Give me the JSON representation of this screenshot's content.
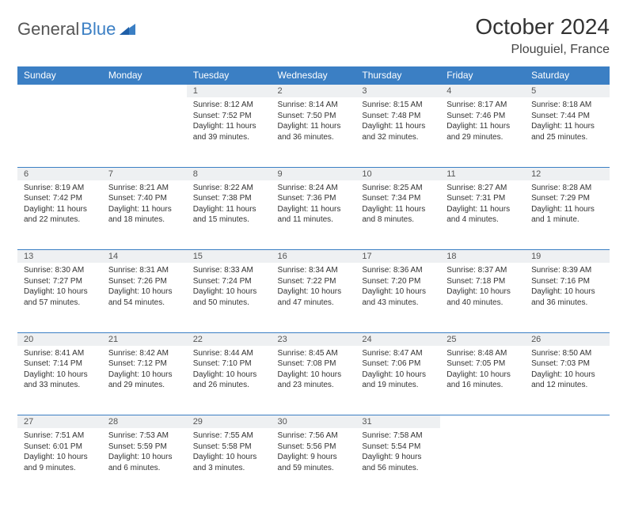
{
  "brand": {
    "word1": "General",
    "word2": "Blue"
  },
  "title": "October 2024",
  "location": "Plouguiel, France",
  "colors": {
    "header_bg": "#3b7fc4",
    "header_text": "#ffffff",
    "daynum_bg": "#eef0f2",
    "border": "#3b7fc4",
    "text": "#333333",
    "logo_gray": "#555555",
    "logo_blue": "#3b7fc4"
  },
  "typography": {
    "title_fontsize": 28,
    "location_fontsize": 16,
    "header_fontsize": 12,
    "cell_fontsize": 10
  },
  "day_names": [
    "Sunday",
    "Monday",
    "Tuesday",
    "Wednesday",
    "Thursday",
    "Friday",
    "Saturday"
  ],
  "weeks": [
    [
      null,
      null,
      {
        "n": "1",
        "sunrise": "8:12 AM",
        "sunset": "7:52 PM",
        "daylight": "11 hours and 39 minutes."
      },
      {
        "n": "2",
        "sunrise": "8:14 AM",
        "sunset": "7:50 PM",
        "daylight": "11 hours and 36 minutes."
      },
      {
        "n": "3",
        "sunrise": "8:15 AM",
        "sunset": "7:48 PM",
        "daylight": "11 hours and 32 minutes."
      },
      {
        "n": "4",
        "sunrise": "8:17 AM",
        "sunset": "7:46 PM",
        "daylight": "11 hours and 29 minutes."
      },
      {
        "n": "5",
        "sunrise": "8:18 AM",
        "sunset": "7:44 PM",
        "daylight": "11 hours and 25 minutes."
      }
    ],
    [
      {
        "n": "6",
        "sunrise": "8:19 AM",
        "sunset": "7:42 PM",
        "daylight": "11 hours and 22 minutes."
      },
      {
        "n": "7",
        "sunrise": "8:21 AM",
        "sunset": "7:40 PM",
        "daylight": "11 hours and 18 minutes."
      },
      {
        "n": "8",
        "sunrise": "8:22 AM",
        "sunset": "7:38 PM",
        "daylight": "11 hours and 15 minutes."
      },
      {
        "n": "9",
        "sunrise": "8:24 AM",
        "sunset": "7:36 PM",
        "daylight": "11 hours and 11 minutes."
      },
      {
        "n": "10",
        "sunrise": "8:25 AM",
        "sunset": "7:34 PM",
        "daylight": "11 hours and 8 minutes."
      },
      {
        "n": "11",
        "sunrise": "8:27 AM",
        "sunset": "7:31 PM",
        "daylight": "11 hours and 4 minutes."
      },
      {
        "n": "12",
        "sunrise": "8:28 AM",
        "sunset": "7:29 PM",
        "daylight": "11 hours and 1 minute."
      }
    ],
    [
      {
        "n": "13",
        "sunrise": "8:30 AM",
        "sunset": "7:27 PM",
        "daylight": "10 hours and 57 minutes."
      },
      {
        "n": "14",
        "sunrise": "8:31 AM",
        "sunset": "7:26 PM",
        "daylight": "10 hours and 54 minutes."
      },
      {
        "n": "15",
        "sunrise": "8:33 AM",
        "sunset": "7:24 PM",
        "daylight": "10 hours and 50 minutes."
      },
      {
        "n": "16",
        "sunrise": "8:34 AM",
        "sunset": "7:22 PM",
        "daylight": "10 hours and 47 minutes."
      },
      {
        "n": "17",
        "sunrise": "8:36 AM",
        "sunset": "7:20 PM",
        "daylight": "10 hours and 43 minutes."
      },
      {
        "n": "18",
        "sunrise": "8:37 AM",
        "sunset": "7:18 PM",
        "daylight": "10 hours and 40 minutes."
      },
      {
        "n": "19",
        "sunrise": "8:39 AM",
        "sunset": "7:16 PM",
        "daylight": "10 hours and 36 minutes."
      }
    ],
    [
      {
        "n": "20",
        "sunrise": "8:41 AM",
        "sunset": "7:14 PM",
        "daylight": "10 hours and 33 minutes."
      },
      {
        "n": "21",
        "sunrise": "8:42 AM",
        "sunset": "7:12 PM",
        "daylight": "10 hours and 29 minutes."
      },
      {
        "n": "22",
        "sunrise": "8:44 AM",
        "sunset": "7:10 PM",
        "daylight": "10 hours and 26 minutes."
      },
      {
        "n": "23",
        "sunrise": "8:45 AM",
        "sunset": "7:08 PM",
        "daylight": "10 hours and 23 minutes."
      },
      {
        "n": "24",
        "sunrise": "8:47 AM",
        "sunset": "7:06 PM",
        "daylight": "10 hours and 19 minutes."
      },
      {
        "n": "25",
        "sunrise": "8:48 AM",
        "sunset": "7:05 PM",
        "daylight": "10 hours and 16 minutes."
      },
      {
        "n": "26",
        "sunrise": "8:50 AM",
        "sunset": "7:03 PM",
        "daylight": "10 hours and 12 minutes."
      }
    ],
    [
      {
        "n": "27",
        "sunrise": "7:51 AM",
        "sunset": "6:01 PM",
        "daylight": "10 hours and 9 minutes."
      },
      {
        "n": "28",
        "sunrise": "7:53 AM",
        "sunset": "5:59 PM",
        "daylight": "10 hours and 6 minutes."
      },
      {
        "n": "29",
        "sunrise": "7:55 AM",
        "sunset": "5:58 PM",
        "daylight": "10 hours and 3 minutes."
      },
      {
        "n": "30",
        "sunrise": "7:56 AM",
        "sunset": "5:56 PM",
        "daylight": "9 hours and 59 minutes."
      },
      {
        "n": "31",
        "sunrise": "7:58 AM",
        "sunset": "5:54 PM",
        "daylight": "9 hours and 56 minutes."
      },
      null,
      null
    ]
  ],
  "labels": {
    "sunrise": "Sunrise:",
    "sunset": "Sunset:",
    "daylight": "Daylight:"
  }
}
